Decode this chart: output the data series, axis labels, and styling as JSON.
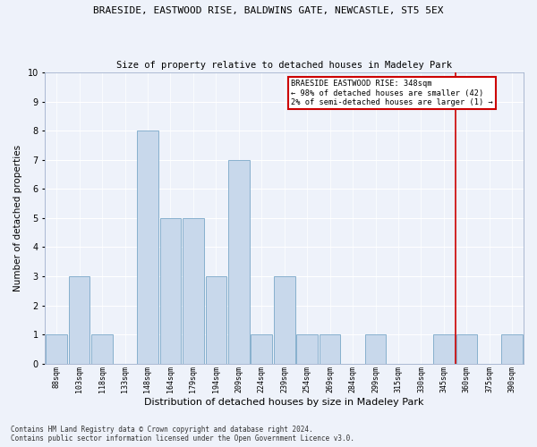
{
  "title1": "BRAESIDE, EASTWOOD RISE, BALDWINS GATE, NEWCASTLE, ST5 5EX",
  "title2": "Size of property relative to detached houses in Madeley Park",
  "xlabel": "Distribution of detached houses by size in Madeley Park",
  "ylabel": "Number of detached properties",
  "footnote": "Contains HM Land Registry data © Crown copyright and database right 2024.\nContains public sector information licensed under the Open Government Licence v3.0.",
  "bar_labels": [
    "88sqm",
    "103sqm",
    "118sqm",
    "133sqm",
    "148sqm",
    "164sqm",
    "179sqm",
    "194sqm",
    "209sqm",
    "224sqm",
    "239sqm",
    "254sqm",
    "269sqm",
    "284sqm",
    "299sqm",
    "315sqm",
    "330sqm",
    "345sqm",
    "360sqm",
    "375sqm",
    "390sqm"
  ],
  "bar_heights": [
    1,
    3,
    1,
    0,
    8,
    5,
    5,
    3,
    7,
    1,
    3,
    1,
    1,
    0,
    1,
    0,
    0,
    1,
    1,
    0,
    1
  ],
  "bar_color": "#c8d8eb",
  "bar_edgecolor": "#7aa8c8",
  "ylim": [
    0,
    10
  ],
  "yticks": [
    0,
    1,
    2,
    3,
    4,
    5,
    6,
    7,
    8,
    9,
    10
  ],
  "vline_x": 17.5,
  "vline_color": "#cc0000",
  "annotation_title": "BRAESIDE EASTWOOD RISE: 348sqm",
  "annotation_line1": "← 98% of detached houses are smaller (42)",
  "annotation_line2": "2% of semi-detached houses are larger (1) →",
  "annotation_box_color": "#cc0000",
  "background_color": "#eef2fa",
  "grid_color": "#ffffff"
}
